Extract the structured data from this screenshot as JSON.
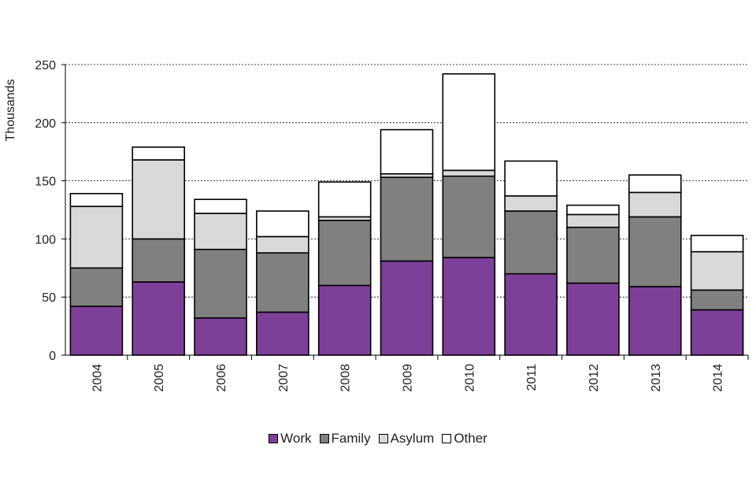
{
  "chart_data": {
    "type": "bar",
    "stacked": true,
    "title": "",
    "xlabel": "",
    "ylabel": "Thousands",
    "ylim": [
      0,
      250
    ],
    "yticks": [
      0,
      50,
      100,
      150,
      200,
      250
    ],
    "grid": "horizontal dashed",
    "legend_position": "bottom",
    "categories": [
      "2004",
      "2005",
      "2006",
      "2007",
      "2008",
      "2009",
      "2010",
      "2011",
      "2012",
      "2013",
      "2014"
    ],
    "series": [
      {
        "name": "Work",
        "color": "#7e3f98",
        "values": [
          42,
          63,
          32,
          37,
          60,
          81,
          84,
          70,
          62,
          59,
          39
        ]
      },
      {
        "name": "Family",
        "color": "#808080",
        "values": [
          33,
          37,
          59,
          51,
          56,
          72,
          70,
          54,
          48,
          60,
          17
        ]
      },
      {
        "name": "Asylum",
        "color": "#d9d9d9",
        "values": [
          53,
          68,
          31,
          14,
          3,
          3,
          5,
          13,
          11,
          21,
          33
        ]
      },
      {
        "name": "Other",
        "color": "#ffffff",
        "values": [
          11,
          11,
          12,
          22,
          30,
          38,
          83,
          30,
          8,
          15,
          14
        ]
      }
    ]
  }
}
